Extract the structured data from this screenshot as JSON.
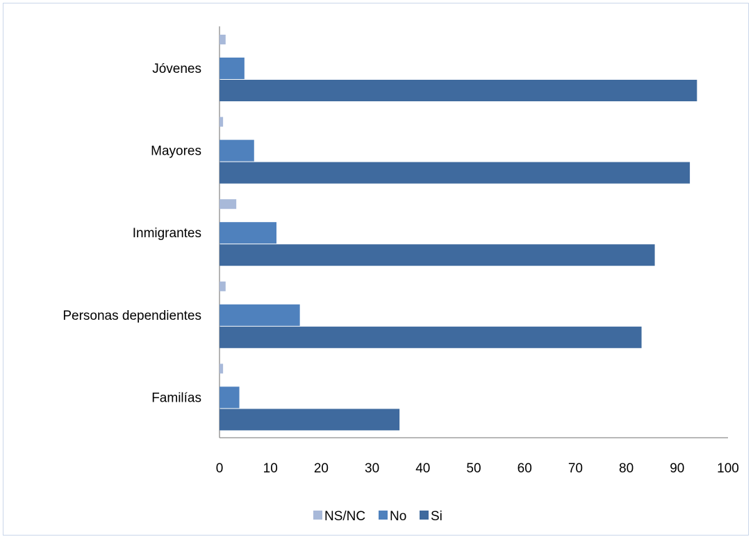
{
  "chart_data": {
    "type": "bar",
    "orientation": "horizontal",
    "categories": [
      "Jóvenes",
      "Mayores",
      "Inmigrantes",
      "Personas dependientes",
      "Familías"
    ],
    "series": [
      {
        "name": "NS/NC",
        "color": "#a8b9d9",
        "values": [
          1.2,
          0.7,
          3.3,
          1.2,
          0.7
        ]
      },
      {
        "name": "No",
        "color": "#4f81bd",
        "values": [
          4.9,
          6.8,
          11.2,
          15.8,
          3.9
        ]
      },
      {
        "name": "Si",
        "color": "#3f6a9e",
        "values": [
          93.9,
          92.5,
          85.6,
          83.0,
          35.4
        ]
      }
    ],
    "xlim": [
      0,
      100
    ],
    "xticks": [
      "0",
      "10",
      "20",
      "30",
      "40",
      "50",
      "60",
      "70",
      "80",
      "90",
      "100"
    ],
    "grid": false,
    "legend_position": "bottom"
  }
}
